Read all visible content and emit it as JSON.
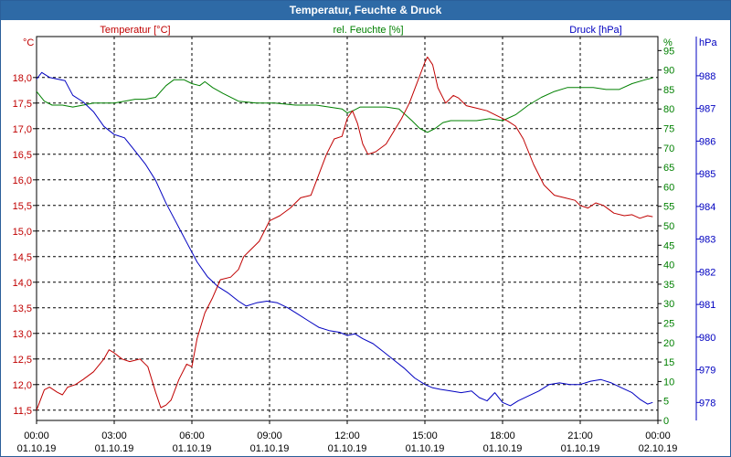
{
  "window": {
    "title": "Temperatur, Feuchte & Druck"
  },
  "colors": {
    "temperature": "#c00000",
    "humidity": "#008000",
    "pressure": "#0000c0",
    "frame": "#2e6aa6",
    "grid": "#000000"
  },
  "chart_data": {
    "type": "line",
    "title": "Temperatur, Feuchte & Druck",
    "series": [
      {
        "name": "Temperatur [°C]",
        "axis": "left",
        "unit": "°C",
        "ylim": [
          11.3,
          18.8
        ],
        "ticks": [
          "11,5",
          "12,0",
          "12,5",
          "13,0",
          "13,5",
          "14,0",
          "14,5",
          "15,0",
          "15,5",
          "16,0",
          "16,5",
          "17,0",
          "17,5",
          "18,0"
        ],
        "tick_values": [
          11.5,
          12.0,
          12.5,
          13.0,
          13.5,
          14.0,
          14.5,
          15.0,
          15.5,
          16.0,
          16.5,
          17.0,
          17.5,
          18.0
        ],
        "points": [
          [
            0,
            11.5
          ],
          [
            0.3,
            11.9
          ],
          [
            0.5,
            11.95
          ],
          [
            0.8,
            11.85
          ],
          [
            1.0,
            11.8
          ],
          [
            1.2,
            11.95
          ],
          [
            1.5,
            12.0
          ],
          [
            1.8,
            12.1
          ],
          [
            2.2,
            12.25
          ],
          [
            2.6,
            12.5
          ],
          [
            2.8,
            12.68
          ],
          [
            3.0,
            12.62
          ],
          [
            3.3,
            12.5
          ],
          [
            3.6,
            12.45
          ],
          [
            4.0,
            12.5
          ],
          [
            4.3,
            12.35
          ],
          [
            4.6,
            11.85
          ],
          [
            4.8,
            11.55
          ],
          [
            5.0,
            11.6
          ],
          [
            5.2,
            11.7
          ],
          [
            5.5,
            12.1
          ],
          [
            5.8,
            12.4
          ],
          [
            6.0,
            12.35
          ],
          [
            6.2,
            12.9
          ],
          [
            6.5,
            13.4
          ],
          [
            6.8,
            13.7
          ],
          [
            7.1,
            14.05
          ],
          [
            7.5,
            14.1
          ],
          [
            7.8,
            14.25
          ],
          [
            8.0,
            14.5
          ],
          [
            8.3,
            14.65
          ],
          [
            8.6,
            14.8
          ],
          [
            9.0,
            15.2
          ],
          [
            9.4,
            15.3
          ],
          [
            9.8,
            15.45
          ],
          [
            10.2,
            15.65
          ],
          [
            10.6,
            15.7
          ],
          [
            10.9,
            16.1
          ],
          [
            11.2,
            16.5
          ],
          [
            11.5,
            16.8
          ],
          [
            11.8,
            16.85
          ],
          [
            12.0,
            17.2
          ],
          [
            12.2,
            17.35
          ],
          [
            12.4,
            17.1
          ],
          [
            12.6,
            16.7
          ],
          [
            12.8,
            16.5
          ],
          [
            13.1,
            16.55
          ],
          [
            13.5,
            16.7
          ],
          [
            13.8,
            16.95
          ],
          [
            14.1,
            17.2
          ],
          [
            14.4,
            17.5
          ],
          [
            14.7,
            17.9
          ],
          [
            15.0,
            18.3
          ],
          [
            15.1,
            18.4
          ],
          [
            15.3,
            18.25
          ],
          [
            15.5,
            17.8
          ],
          [
            15.8,
            17.5
          ],
          [
            16.1,
            17.65
          ],
          [
            16.3,
            17.6
          ],
          [
            16.6,
            17.45
          ],
          [
            17.0,
            17.4
          ],
          [
            17.4,
            17.35
          ],
          [
            17.8,
            17.25
          ],
          [
            18.2,
            17.15
          ],
          [
            18.5,
            17.05
          ],
          [
            18.8,
            16.8
          ],
          [
            19.2,
            16.3
          ],
          [
            19.6,
            15.9
          ],
          [
            20.0,
            15.7
          ],
          [
            20.4,
            15.65
          ],
          [
            20.8,
            15.6
          ],
          [
            21.0,
            15.5
          ],
          [
            21.3,
            15.45
          ],
          [
            21.6,
            15.55
          ],
          [
            21.9,
            15.5
          ],
          [
            22.3,
            15.35
          ],
          [
            22.7,
            15.3
          ],
          [
            23.0,
            15.32
          ],
          [
            23.3,
            15.25
          ],
          [
            23.6,
            15.3
          ],
          [
            23.8,
            15.28
          ]
        ]
      },
      {
        "name": "rel. Feuchte [%]",
        "axis": "right",
        "unit": "%",
        "ylim": [
          0,
          98.6
        ],
        "ticks": [
          "0",
          "5",
          "10",
          "15",
          "20",
          "25",
          "30",
          "35",
          "40",
          "45",
          "50",
          "55",
          "60",
          "65",
          "70",
          "75",
          "80",
          "85",
          "90",
          "95"
        ],
        "tick_values": [
          0,
          5,
          10,
          15,
          20,
          25,
          30,
          35,
          40,
          45,
          50,
          55,
          60,
          65,
          70,
          75,
          80,
          85,
          90,
          95
        ],
        "points": [
          [
            0,
            84.5
          ],
          [
            0.3,
            82
          ],
          [
            0.6,
            81
          ],
          [
            1.0,
            81
          ],
          [
            1.4,
            80.5
          ],
          [
            1.8,
            81
          ],
          [
            2.2,
            81.5
          ],
          [
            2.6,
            81.5
          ],
          [
            3.0,
            81.5
          ],
          [
            3.4,
            82
          ],
          [
            3.8,
            82.5
          ],
          [
            4.2,
            82.5
          ],
          [
            4.6,
            83
          ],
          [
            5.0,
            86
          ],
          [
            5.3,
            87.5
          ],
          [
            5.7,
            87.5
          ],
          [
            6.0,
            86.5
          ],
          [
            6.3,
            86
          ],
          [
            6.5,
            87
          ],
          [
            6.8,
            85.5
          ],
          [
            7.2,
            84
          ],
          [
            7.8,
            82
          ],
          [
            8.5,
            81.5
          ],
          [
            9.2,
            81.5
          ],
          [
            10.0,
            81
          ],
          [
            10.8,
            81
          ],
          [
            11.3,
            80.5
          ],
          [
            11.8,
            80
          ],
          [
            12.0,
            79
          ],
          [
            12.2,
            79.5
          ],
          [
            12.5,
            80.5
          ],
          [
            13.0,
            80.5
          ],
          [
            13.5,
            80.5
          ],
          [
            14.0,
            80
          ],
          [
            14.5,
            77
          ],
          [
            14.8,
            75
          ],
          [
            15.1,
            74
          ],
          [
            15.4,
            75
          ],
          [
            15.7,
            76.5
          ],
          [
            16.0,
            77
          ],
          [
            16.5,
            77
          ],
          [
            17.0,
            77
          ],
          [
            17.5,
            77.5
          ],
          [
            18.0,
            77
          ],
          [
            18.5,
            78.5
          ],
          [
            19.0,
            81
          ],
          [
            19.5,
            83
          ],
          [
            20.0,
            84.5
          ],
          [
            20.5,
            85.5
          ],
          [
            21.0,
            85.5
          ],
          [
            21.5,
            85.5
          ],
          [
            22.0,
            85
          ],
          [
            22.5,
            85
          ],
          [
            23.0,
            86.5
          ],
          [
            23.5,
            87.5
          ],
          [
            23.8,
            88
          ]
        ]
      },
      {
        "name": "Druck [hPa]",
        "axis": "right2",
        "unit": "hPa",
        "ylim": [
          977.45,
          989.2
        ],
        "ticks": [
          "978",
          "979",
          "980",
          "981",
          "982",
          "983",
          "984",
          "985",
          "986",
          "987",
          "988"
        ],
        "tick_values": [
          978,
          979,
          980,
          981,
          982,
          983,
          984,
          985,
          986,
          987,
          988
        ],
        "points": [
          [
            0,
            987.9
          ],
          [
            0.2,
            988.1
          ],
          [
            0.5,
            987.95
          ],
          [
            0.8,
            987.9
          ],
          [
            1.1,
            987.85
          ],
          [
            1.4,
            987.4
          ],
          [
            1.8,
            987.2
          ],
          [
            2.2,
            986.9
          ],
          [
            2.6,
            986.45
          ],
          [
            3.0,
            986.2
          ],
          [
            3.4,
            986.1
          ],
          [
            3.8,
            985.7
          ],
          [
            4.2,
            985.3
          ],
          [
            4.6,
            984.8
          ],
          [
            5.0,
            984.1
          ],
          [
            5.4,
            983.5
          ],
          [
            5.8,
            982.9
          ],
          [
            6.2,
            982.3
          ],
          [
            6.6,
            981.85
          ],
          [
            7.0,
            981.55
          ],
          [
            7.4,
            981.35
          ],
          [
            7.8,
            981.1
          ],
          [
            8.1,
            980.95
          ],
          [
            8.5,
            981.05
          ],
          [
            8.9,
            981.1
          ],
          [
            9.3,
            981.05
          ],
          [
            9.7,
            980.9
          ],
          [
            10.1,
            980.7
          ],
          [
            10.5,
            980.5
          ],
          [
            10.9,
            980.3
          ],
          [
            11.3,
            980.2
          ],
          [
            11.7,
            980.15
          ],
          [
            12.0,
            980.05
          ],
          [
            12.3,
            980.1
          ],
          [
            12.6,
            979.95
          ],
          [
            13.0,
            979.8
          ],
          [
            13.4,
            979.55
          ],
          [
            13.8,
            979.3
          ],
          [
            14.2,
            979.05
          ],
          [
            14.6,
            978.75
          ],
          [
            15.0,
            978.55
          ],
          [
            15.3,
            978.45
          ],
          [
            15.6,
            978.4
          ],
          [
            16.0,
            978.35
          ],
          [
            16.4,
            978.3
          ],
          [
            16.8,
            978.35
          ],
          [
            17.1,
            978.15
          ],
          [
            17.4,
            978.05
          ],
          [
            17.7,
            978.3
          ],
          [
            18.0,
            978.0
          ],
          [
            18.3,
            977.9
          ],
          [
            18.6,
            978.05
          ],
          [
            19.0,
            978.2
          ],
          [
            19.4,
            978.35
          ],
          [
            19.8,
            978.55
          ],
          [
            20.2,
            978.6
          ],
          [
            20.6,
            978.55
          ],
          [
            21.0,
            978.55
          ],
          [
            21.4,
            978.65
          ],
          [
            21.8,
            978.7
          ],
          [
            22.2,
            978.6
          ],
          [
            22.6,
            978.45
          ],
          [
            23.0,
            978.3
          ],
          [
            23.3,
            978.1
          ],
          [
            23.6,
            977.95
          ],
          [
            23.8,
            978.0
          ]
        ]
      }
    ],
    "x": {
      "range": [
        0,
        24
      ],
      "tick_values": [
        0,
        3,
        6,
        9,
        12,
        15,
        18,
        21,
        24
      ],
      "tick_times": [
        "00:00",
        "03:00",
        "06:00",
        "09:00",
        "12:00",
        "15:00",
        "18:00",
        "21:00",
        "00:00"
      ],
      "tick_dates": [
        "01.10.19",
        "01.10.19",
        "01.10.19",
        "01.10.19",
        "01.10.19",
        "01.10.19",
        "01.10.19",
        "01.10.19",
        "02.10.19"
      ]
    },
    "grid": true
  }
}
